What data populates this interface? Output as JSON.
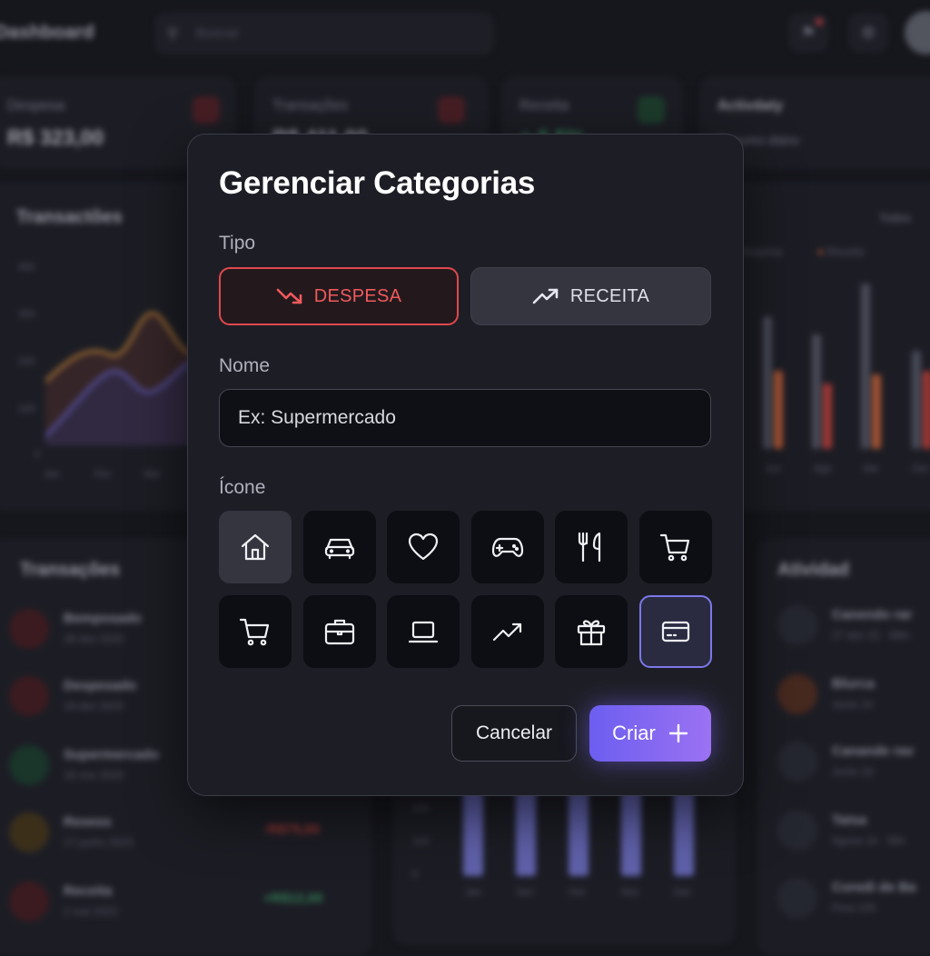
{
  "background": {
    "app_title": "Dashboard",
    "search_placeholder": "Buscar",
    "stats": [
      {
        "label": "Despesa",
        "value": "R$ 323,00"
      },
      {
        "label": "Transações",
        "value": "R$ 411,00"
      },
      {
        "label": "Receita",
        "value": "+ 6,5%"
      },
      {
        "label": "Activdaty",
        "value": "Resumo diário"
      }
    ],
    "chart_left": {
      "title": "Transactões",
      "y_ticks": [
        "400",
        "300",
        "200",
        "100",
        "0"
      ],
      "x_ticks": [
        "Jan",
        "Fev",
        "Mar"
      ]
    },
    "chart_right": {
      "filter": "Todos",
      "legend": [
        "Despesa",
        "Receita"
      ],
      "x_ticks": [
        "Jun",
        "Ago",
        "Set",
        "Out"
      ]
    },
    "transactions": {
      "title": "Transações",
      "items": [
        {
          "name": "Bemposado",
          "date": "28 dez 2023",
          "amount": ""
        },
        {
          "name": "Despesado",
          "date": "19 dez 2023",
          "amount": ""
        },
        {
          "name": "Supermercado",
          "date": "16 nov 2023",
          "amount": ""
        },
        {
          "name": "Resess",
          "date": "17 junho 2023",
          "amount": "-R$75,00"
        },
        {
          "name": "Receita",
          "date": "2 mai 2023",
          "amount": "+R$12,00"
        }
      ]
    },
    "bottom_chart": {
      "y_ticks": [
        "200",
        "100",
        "0"
      ],
      "x_ticks": [
        "Jan",
        "Sen",
        "Out",
        "Nov",
        "Dez"
      ]
    },
    "activity": {
      "title": "Atividad",
      "items": [
        {
          "name": "Canendo rar",
          "date": "27 dez 22 · Mlin"
        },
        {
          "name": "Blurca",
          "date": "Junio 1h"
        },
        {
          "name": "Canande rav",
          "date": "Junio 2d"
        },
        {
          "name": "Tatsa",
          "date": "Agosa 1h · Min"
        },
        {
          "name": "Coredi de Ba",
          "date": "Pora 10h"
        }
      ]
    }
  },
  "modal": {
    "title": "Gerenciar Categorias",
    "type_label": "Tipo",
    "type_options": [
      {
        "label": "DESPESA",
        "icon": "trending-down-icon",
        "selected": true,
        "color": "#ee5a5d"
      },
      {
        "label": "RECEITA",
        "icon": "trending-up-icon",
        "selected": false
      }
    ],
    "name_label": "Nome",
    "name_placeholder": "Ex: Supermercado",
    "name_value": "",
    "icon_label": "Ícone",
    "icons": [
      "home-icon",
      "car-icon",
      "heart-icon",
      "gamepad-icon",
      "utensils-icon",
      "shopping-cart-icon",
      "shopping-cart-icon",
      "briefcase-icon",
      "laptop-icon",
      "trending-up-icon",
      "gift-icon",
      "credit-card-icon"
    ],
    "selected_icon": "credit-card-icon",
    "cancel_label": "Cancelar",
    "create_label": "Criar",
    "colors": {
      "accent": "#7c78ea",
      "expense": "#e0484c"
    }
  }
}
